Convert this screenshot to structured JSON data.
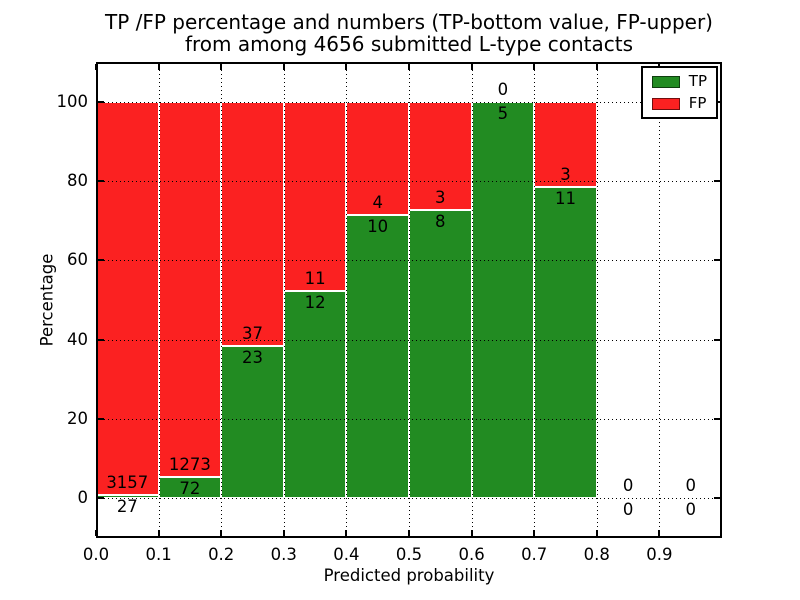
{
  "chart_data": {
    "type": "bar",
    "stacked": true,
    "title_line1": "TP /FP percentage and numbers (TP-bottom value, FP-upper)",
    "title_line2": "from among 4656 submitted L-type contacts",
    "xlabel": "Predicted probability",
    "ylabel": "Percentage",
    "total_submitted": 4656,
    "bins": [
      0.0,
      0.1,
      0.2,
      0.3,
      0.4,
      0.5,
      0.6,
      0.7,
      0.8,
      0.9
    ],
    "bin_width": 0.1,
    "series": [
      {
        "name": "TP",
        "color": "#228b22",
        "counts": [
          27,
          72,
          23,
          12,
          10,
          8,
          5,
          11,
          0,
          0
        ]
      },
      {
        "name": "FP",
        "color": "#fb2121",
        "counts": [
          3157,
          1273,
          37,
          11,
          4,
          3,
          0,
          3,
          0,
          0
        ]
      }
    ],
    "tp_percent": [
      0.848,
      5.353,
      38.333,
      52.174,
      71.429,
      72.727,
      100.0,
      78.571,
      0.0,
      0.0
    ],
    "x_ticks": [
      0.0,
      0.1,
      0.2,
      0.3,
      0.4,
      0.5,
      0.6,
      0.7,
      0.8,
      0.9
    ],
    "x_tick_labels": [
      "0.0",
      "0.1",
      "0.2",
      "0.3",
      "0.4",
      "0.5",
      "0.6",
      "0.7",
      "0.8",
      "0.9"
    ],
    "y_ticks": [
      0,
      20,
      40,
      60,
      80,
      100
    ],
    "y_tick_labels": [
      "0",
      "20",
      "40",
      "60",
      "80",
      "100"
    ],
    "xlim": [
      0.0,
      1.0
    ],
    "ylim": [
      -10,
      110
    ],
    "grid": true,
    "legend": {
      "position": "upper right",
      "entries": [
        {
          "label": "TP",
          "color": "#228b22"
        },
        {
          "label": "FP",
          "color": "#fb2121"
        }
      ]
    }
  }
}
